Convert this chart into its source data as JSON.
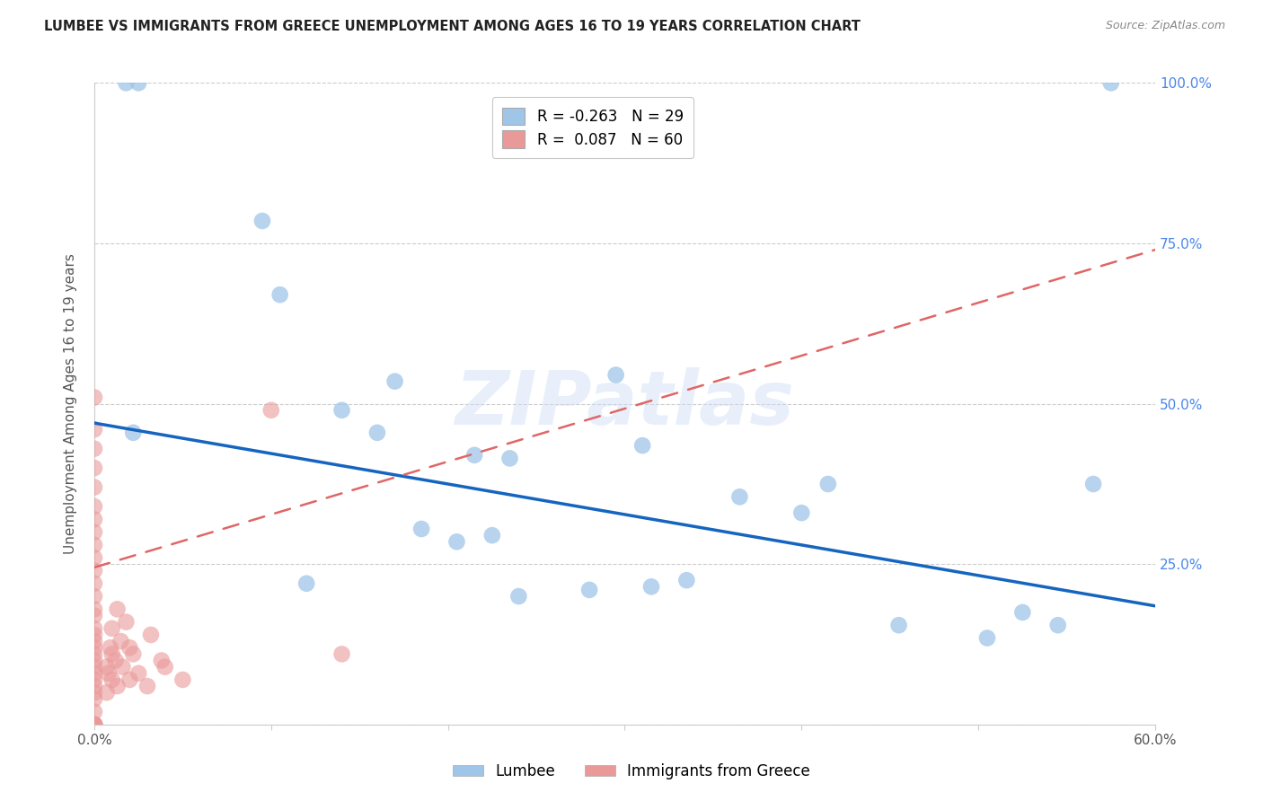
{
  "title": "LUMBEE VS IMMIGRANTS FROM GREECE UNEMPLOYMENT AMONG AGES 16 TO 19 YEARS CORRELATION CHART",
  "source": "Source: ZipAtlas.com",
  "ylabel": "Unemployment Among Ages 16 to 19 years",
  "xlim": [
    0.0,
    0.6
  ],
  "ylim": [
    0.0,
    1.0
  ],
  "lumbee_R": -0.263,
  "lumbee_N": 29,
  "greece_R": 0.087,
  "greece_N": 60,
  "lumbee_color": "#9fc5e8",
  "greece_color": "#ea9999",
  "lumbee_line_color": "#1565c0",
  "greece_line_color": "#e06666",
  "watermark": "ZIPatlas",
  "legend_lumbee": "Lumbee",
  "legend_greece": "Immigrants from Greece",
  "lumbee_line_y0": 0.47,
  "lumbee_line_y1": 0.185,
  "greece_line_y0": 0.245,
  "greece_line_y1": 0.74,
  "lumbee_x": [
    0.018,
    0.025,
    0.095,
    0.105,
    0.14,
    0.16,
    0.17,
    0.185,
    0.205,
    0.215,
    0.225,
    0.235,
    0.24,
    0.28,
    0.295,
    0.31,
    0.315,
    0.335,
    0.365,
    0.4,
    0.415,
    0.455,
    0.505,
    0.525,
    0.545,
    0.565,
    0.575,
    0.022,
    0.12
  ],
  "lumbee_y": [
    1.0,
    1.0,
    0.785,
    0.67,
    0.49,
    0.455,
    0.535,
    0.305,
    0.285,
    0.42,
    0.295,
    0.415,
    0.2,
    0.21,
    0.545,
    0.435,
    0.215,
    0.225,
    0.355,
    0.33,
    0.375,
    0.155,
    0.135,
    0.175,
    0.155,
    0.375,
    1.0,
    0.455,
    0.22
  ],
  "greece_x": [
    0.0,
    0.0,
    0.0,
    0.0,
    0.0,
    0.0,
    0.0,
    0.0,
    0.0,
    0.0,
    0.0,
    0.0,
    0.0,
    0.0,
    0.0,
    0.0,
    0.0,
    0.0,
    0.0,
    0.0,
    0.0,
    0.0,
    0.0,
    0.0,
    0.0,
    0.0,
    0.0,
    0.0,
    0.0,
    0.0,
    0.0,
    0.0,
    0.0,
    0.0,
    0.0,
    0.0,
    0.007,
    0.007,
    0.008,
    0.009,
    0.01,
    0.01,
    0.01,
    0.012,
    0.013,
    0.013,
    0.015,
    0.016,
    0.018,
    0.02,
    0.02,
    0.022,
    0.025,
    0.03,
    0.032,
    0.038,
    0.04,
    0.05,
    0.1,
    0.14
  ],
  "greece_y": [
    0.0,
    0.0,
    0.0,
    0.0,
    0.0,
    0.0,
    0.0,
    0.0,
    0.02,
    0.04,
    0.05,
    0.06,
    0.07,
    0.08,
    0.09,
    0.1,
    0.11,
    0.12,
    0.13,
    0.14,
    0.15,
    0.17,
    0.18,
    0.2,
    0.22,
    0.24,
    0.26,
    0.28,
    0.3,
    0.32,
    0.34,
    0.37,
    0.4,
    0.43,
    0.46,
    0.51,
    0.05,
    0.09,
    0.08,
    0.12,
    0.07,
    0.11,
    0.15,
    0.1,
    0.06,
    0.18,
    0.13,
    0.09,
    0.16,
    0.07,
    0.12,
    0.11,
    0.08,
    0.06,
    0.14,
    0.1,
    0.09,
    0.07,
    0.49,
    0.11
  ]
}
